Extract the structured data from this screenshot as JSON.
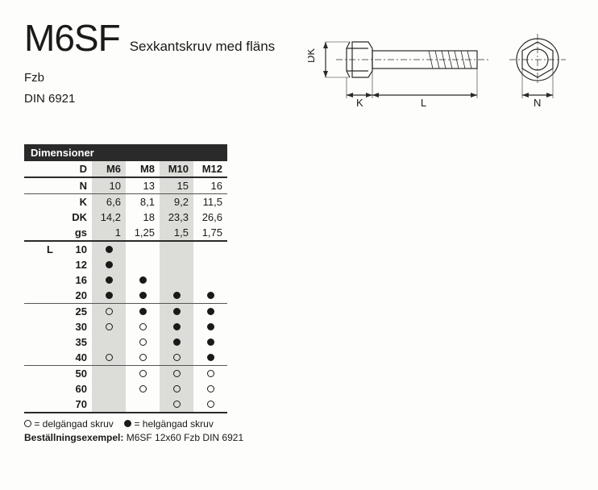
{
  "header": {
    "title": "M6SF",
    "subtitle": "Sexkantskruv med fläns",
    "meta1": "Fzb",
    "meta2": "DIN 6921"
  },
  "diagram": {
    "labels": {
      "DK": "DK",
      "K": "K",
      "L": "L",
      "N": "N"
    },
    "stroke": "#2a2a2a"
  },
  "table": {
    "heading": "Dimensioner",
    "col_header": "D",
    "sizes": [
      "M6",
      "M8",
      "M10",
      "M12"
    ],
    "shaded_cols": [
      0,
      2
    ],
    "param_rows": [
      {
        "label": "N",
        "vals": [
          "10",
          "13",
          "15",
          "16"
        ],
        "rule": "thin"
      },
      {
        "label": "K",
        "vals": [
          "6,6",
          "8,1",
          "9,2",
          "11,5"
        ]
      },
      {
        "label": "DK",
        "vals": [
          "14,2",
          "18",
          "23,3",
          "26,6"
        ]
      },
      {
        "label": "gs",
        "vals": [
          "1",
          "1,25",
          "1,5",
          "1,75"
        ],
        "rule": "thick"
      }
    ],
    "l_label": "L",
    "length_rows": [
      {
        "len": "10",
        "cells": [
          "f",
          "",
          "",
          ""
        ]
      },
      {
        "len": "12",
        "cells": [
          "f",
          "",
          "",
          ""
        ]
      },
      {
        "len": "16",
        "cells": [
          "f",
          "f",
          "",
          ""
        ]
      },
      {
        "len": "20",
        "cells": [
          "f",
          "f",
          "f",
          "f"
        ],
        "rule": "thin"
      },
      {
        "len": "25",
        "cells": [
          "o",
          "f",
          "f",
          "f"
        ]
      },
      {
        "len": "30",
        "cells": [
          "o",
          "o",
          "f",
          "f"
        ]
      },
      {
        "len": "35",
        "cells": [
          "",
          "o",
          "f",
          "f"
        ]
      },
      {
        "len": "40",
        "cells": [
          "o",
          "o",
          "o",
          "f"
        ],
        "rule": "thin"
      },
      {
        "len": "50",
        "cells": [
          "",
          "o",
          "o",
          "o"
        ]
      },
      {
        "len": "60",
        "cells": [
          "",
          "o",
          "o",
          "o"
        ]
      },
      {
        "len": "70",
        "cells": [
          "",
          "",
          "o",
          "o"
        ],
        "rule": "thick"
      }
    ]
  },
  "legend": {
    "open_label": "= delgängad skruv",
    "filled_label": "= helgängad skruv",
    "example_label": "Beställningsexempel:",
    "example_value": "M6SF 12x60 Fzb DIN 6921"
  }
}
